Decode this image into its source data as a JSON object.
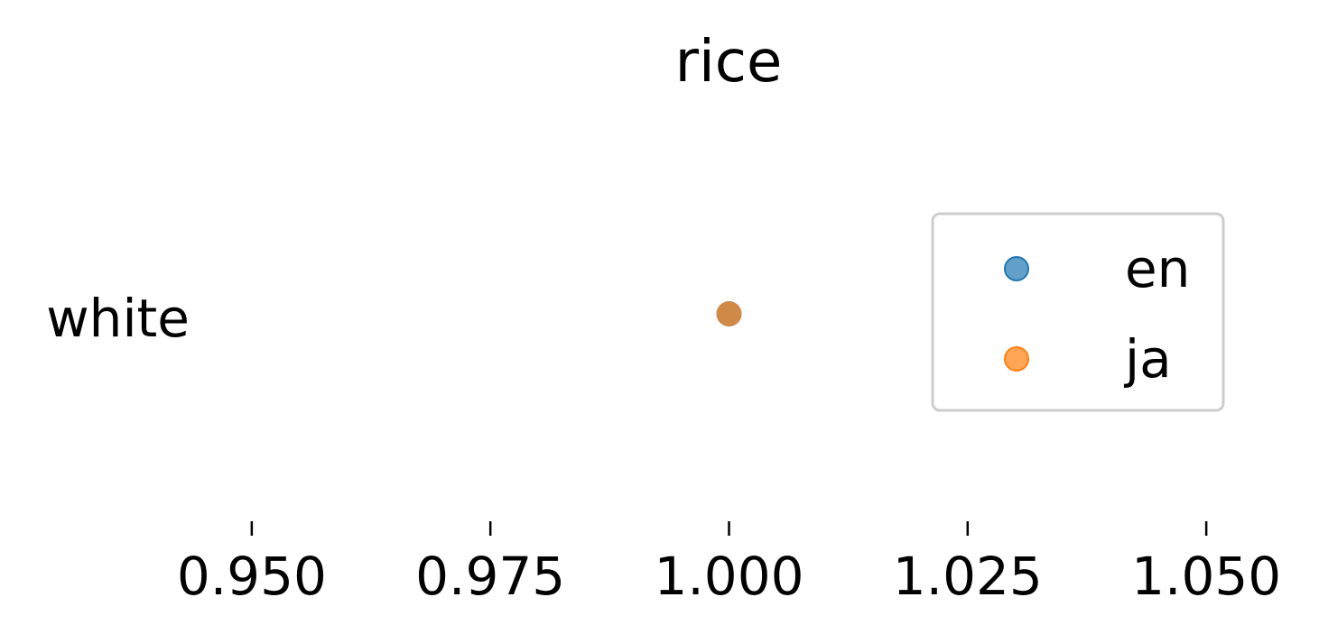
{
  "chart_data": {
    "type": "scatter",
    "title": "rice",
    "xlabel": "",
    "ylabel": "",
    "categories": [
      "white"
    ],
    "xlim": [
      0.945,
      1.055
    ],
    "xticks": [
      0.95,
      0.975,
      1.0,
      1.025,
      1.05
    ],
    "xtick_labels": [
      "0.950",
      "0.975",
      "1.000",
      "1.025",
      "1.050"
    ],
    "grid": false,
    "legend_position": "right",
    "series": [
      {
        "name": "en",
        "color": "#1f77b4",
        "points": [
          {
            "category": "white",
            "x": 1.0
          }
        ]
      },
      {
        "name": "ja",
        "color": "#ff7f0e",
        "points": [
          {
            "category": "white",
            "x": 1.0
          }
        ]
      }
    ]
  }
}
